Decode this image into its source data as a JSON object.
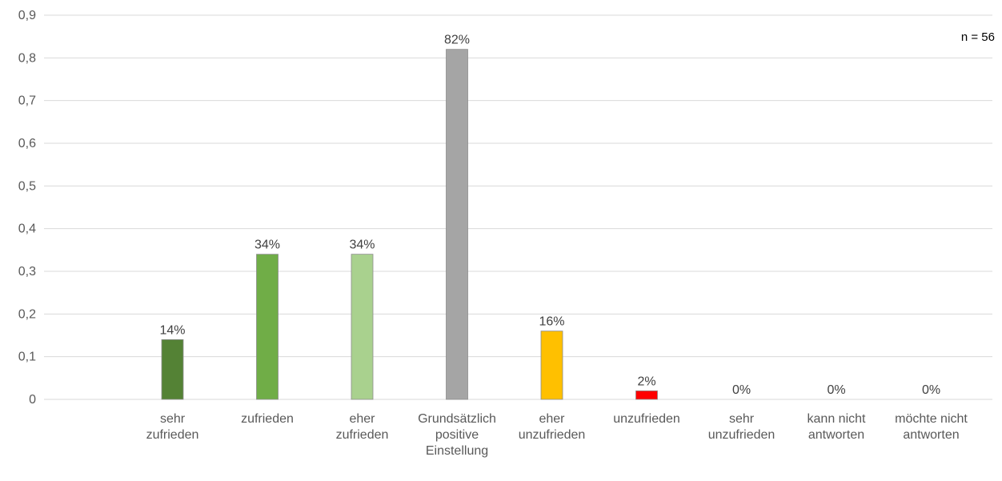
{
  "chart_data": {
    "type": "bar",
    "title": "",
    "xlabel": "",
    "ylabel": "",
    "ylim": [
      0,
      0.9
    ],
    "yticks": [
      "0",
      "0,1",
      "0,2",
      "0,3",
      "0,4",
      "0,5",
      "0,6",
      "0,7",
      "0,8",
      "0,9"
    ],
    "grid": true,
    "annotation": "n = 56",
    "categories": [
      [
        "sehr",
        "zufrieden"
      ],
      [
        "zufrieden"
      ],
      [
        "eher",
        "zufrieden"
      ],
      [
        "Grundsätzlich",
        "positive",
        "Einstellung"
      ],
      [
        "eher",
        "unzufrieden"
      ],
      [
        "unzufrieden"
      ],
      [
        "sehr",
        "unzufrieden"
      ],
      [
        "kann nicht",
        "antworten"
      ],
      [
        "möchte nicht",
        "antworten"
      ]
    ],
    "values": [
      0.14,
      0.34,
      0.34,
      0.82,
      0.16,
      0.02,
      0,
      0,
      0
    ],
    "data_labels": [
      "14%",
      "34%",
      "34%",
      "82%",
      "16%",
      "2%",
      "0%",
      "0%",
      "0%"
    ],
    "colors": [
      "#548235",
      "#70ad47",
      "#a9d18e",
      "#a5a5a5",
      "#ffc000",
      "#ff0000",
      "#ffffff",
      "#ffffff",
      "#ffffff"
    ]
  }
}
